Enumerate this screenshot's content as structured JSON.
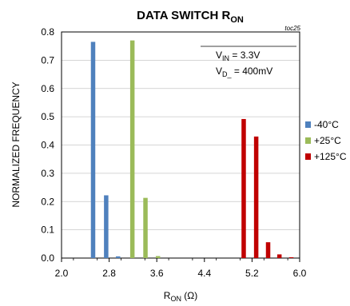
{
  "chart_data": {
    "type": "bar",
    "title_main": "DATA SWITCH R",
    "title_sub": "ON",
    "tag": "toc25",
    "xlabel_main": "R",
    "xlabel_sub": "ON",
    "xlabel_unit": " (Ω)",
    "ylabel": "NORMALIZED FREQUENCY",
    "xlim": [
      2.0,
      6.0
    ],
    "ylim": [
      0,
      0.8
    ],
    "xticks": [
      "2.0",
      "2.8",
      "3.6",
      "4.4",
      "5.2",
      "6.0"
    ],
    "yticks": [
      "0.0",
      "0.1",
      "0.2",
      "0.3",
      "0.4",
      "0.5",
      "0.6",
      "0.7",
      "0.8"
    ],
    "grid": "horizontal",
    "legend_position": "right",
    "annotations": {
      "vin_main": "V",
      "vin_sub": "IN",
      "vin_value": " = 3.3V",
      "vd_main": "V",
      "vd_sub": "D_",
      "vd_value": " = 400mV"
    },
    "series": [
      {
        "name": "-40°C",
        "color": "#4f81bd",
        "points": [
          {
            "x": 2.53,
            "y": 0.765
          },
          {
            "x": 2.75,
            "y": 0.222
          },
          {
            "x": 2.95,
            "y": 0.006
          }
        ]
      },
      {
        "name": "+25°C",
        "color": "#9bbb59",
        "points": [
          {
            "x": 3.19,
            "y": 0.77
          },
          {
            "x": 3.41,
            "y": 0.213
          },
          {
            "x": 3.62,
            "y": 0.007
          }
        ]
      },
      {
        "name": "+125°C",
        "color": "#c00000",
        "points": [
          {
            "x": 5.06,
            "y": 0.492
          },
          {
            "x": 5.27,
            "y": 0.43
          },
          {
            "x": 5.47,
            "y": 0.056
          },
          {
            "x": 5.66,
            "y": 0.013
          },
          {
            "x": 5.86,
            "y": 0.003
          }
        ]
      }
    ]
  }
}
